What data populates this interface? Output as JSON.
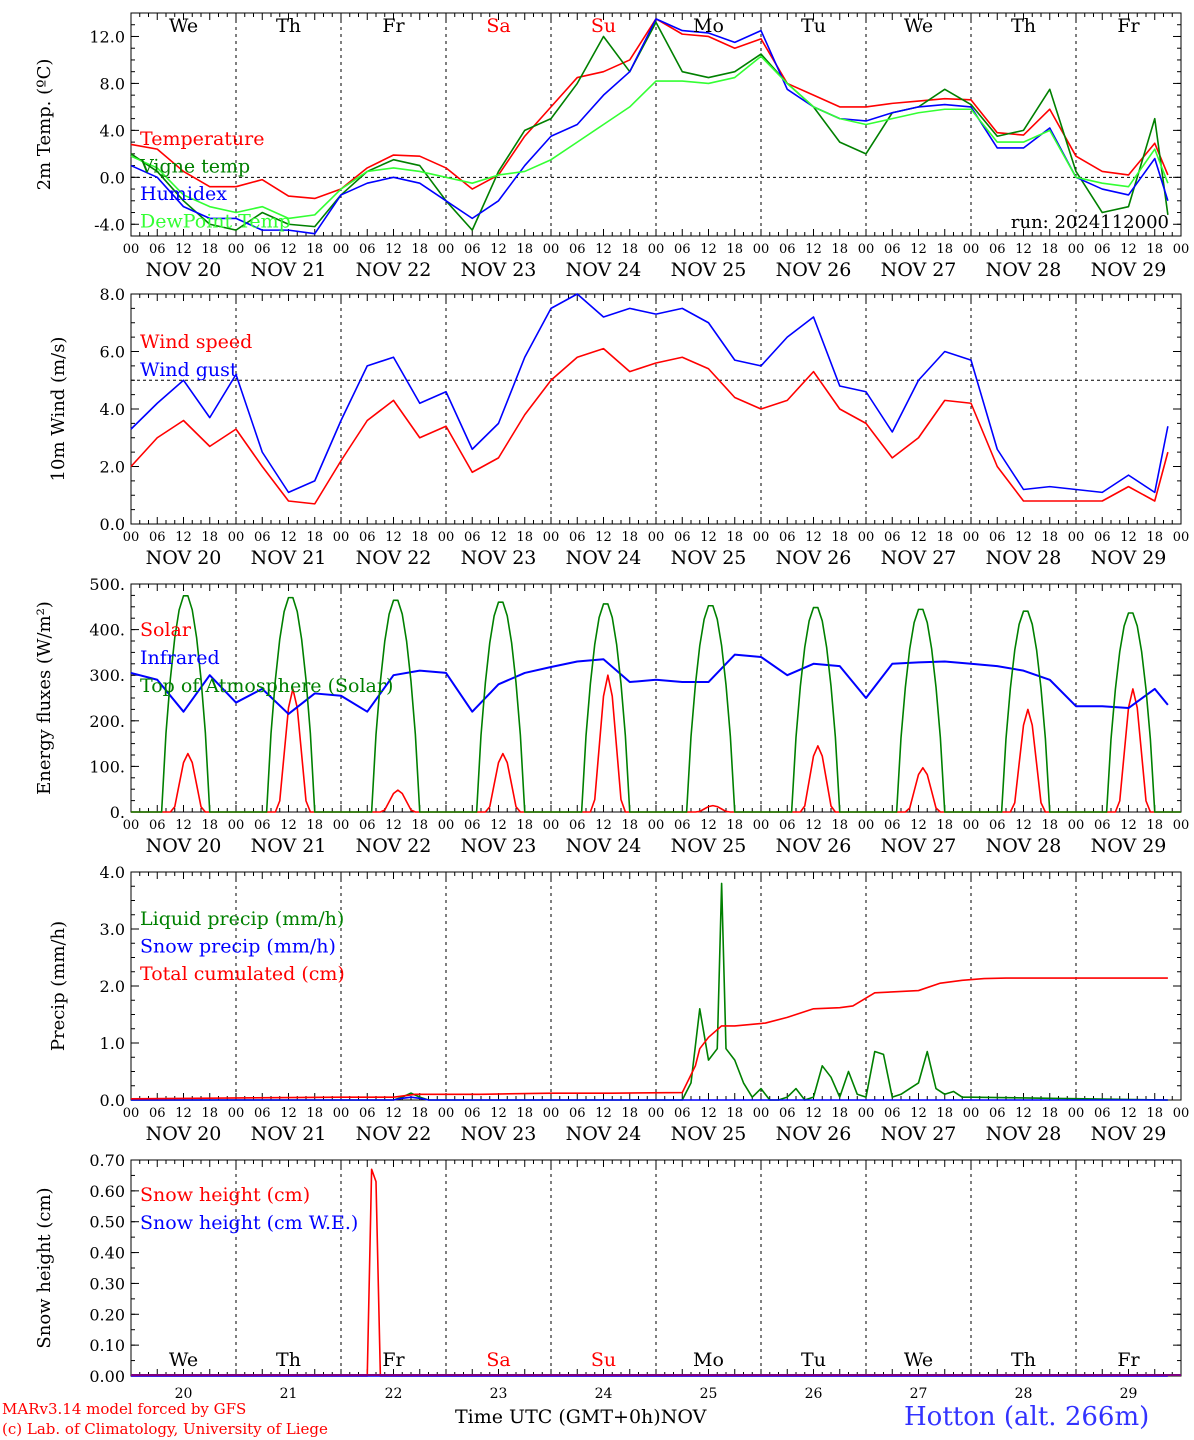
{
  "footer": {
    "credit_line1": "MARv3.14 model forced by GFS",
    "credit_line2": "(c) Lab. of Climatology, University of Liege",
    "xlabel": "Time UTC (GMT+0h)",
    "xunit": "NOV",
    "station": "Hotton (alt. 266m)"
  },
  "days": {
    "weekday_names": [
      "We",
      "Th",
      "Fr",
      "Sa",
      "Su",
      "Mo",
      "Tu",
      "We",
      "Th",
      "Fr"
    ],
    "weekend_flags": [
      false,
      false,
      false,
      true,
      true,
      false,
      false,
      false,
      false,
      false
    ],
    "date_labels": [
      "NOV 20",
      "NOV 21",
      "NOV 22",
      "NOV 23",
      "NOV 24",
      "NOV 25",
      "NOV 26",
      "NOV 27",
      "NOV 28",
      "NOV 29"
    ],
    "day_numbers": [
      "20",
      "21",
      "22",
      "23",
      "24",
      "25",
      "26",
      "27",
      "28",
      "29"
    ],
    "hour_ticks": [
      "00",
      "06",
      "12",
      "18"
    ],
    "final_tick": "00"
  },
  "colors": {
    "red": "#ff0000",
    "darkgreen": "#008000",
    "blue": "#0000ff",
    "lightgreen": "#33ff33",
    "weekend": "#ff0000",
    "purple": "#800080"
  },
  "chart_data": [
    {
      "id": "temp",
      "type": "line",
      "ylabel": "2m Temp. (ºC)",
      "ylim": [
        -5.0,
        14.0
      ],
      "yticks": [
        -4.0,
        0.0,
        4.0,
        8.0,
        12.0
      ],
      "ytick_labels": [
        "-4.0",
        "0.0",
        "4.0",
        "8.0",
        "12.0"
      ],
      "dashed_ref": 0.0,
      "annotation": "run: 2024112000",
      "x_unit": "hours since NOV 20 00 UTC",
      "series": [
        {
          "name": "Temperature",
          "color": "red",
          "x": [
            0,
            6,
            12,
            18,
            24,
            30,
            36,
            42,
            48,
            54,
            60,
            66,
            72,
            78,
            84,
            90,
            96,
            102,
            108,
            114,
            120,
            126,
            132,
            138,
            144,
            150,
            156,
            162,
            168,
            174,
            180,
            186,
            192,
            198,
            204,
            210,
            216,
            222,
            228,
            234,
            237
          ],
          "y": [
            2.8,
            2.4,
            0.5,
            -0.8,
            -0.8,
            -0.2,
            -1.6,
            -1.8,
            -1.0,
            0.8,
            1.9,
            1.8,
            0.8,
            -1.0,
            0.2,
            3.5,
            6.0,
            8.5,
            9.0,
            10.0,
            13.5,
            12.2,
            12.0,
            11.0,
            11.8,
            8.0,
            7.0,
            6.0,
            6.0,
            6.3,
            6.5,
            6.7,
            6.6,
            3.8,
            3.6,
            5.8,
            1.8,
            0.5,
            0.2,
            2.9,
            0.2
          ]
        },
        {
          "name": "Vigne temp",
          "color": "darkgreen",
          "x": [
            0,
            6,
            12,
            18,
            24,
            30,
            36,
            42,
            48,
            54,
            60,
            66,
            72,
            78,
            84,
            90,
            96,
            102,
            108,
            114,
            120,
            126,
            132,
            138,
            144,
            150,
            156,
            162,
            168,
            174,
            180,
            186,
            192,
            198,
            204,
            210,
            216,
            222,
            228,
            234,
            237
          ],
          "y": [
            2.0,
            0.5,
            -2.0,
            -4.0,
            -4.5,
            -3.0,
            -4.0,
            -4.2,
            -1.5,
            0.5,
            1.5,
            1.0,
            -2.0,
            -4.5,
            0.5,
            4.0,
            5.0,
            8.0,
            12.0,
            9.0,
            13.2,
            9.0,
            8.5,
            9.0,
            10.5,
            8.0,
            6.0,
            3.0,
            2.0,
            5.5,
            6.0,
            7.5,
            6.2,
            3.5,
            4.0,
            7.5,
            0.5,
            -3.0,
            -2.5,
            5.0,
            -3.2
          ]
        },
        {
          "name": "Humidex",
          "color": "blue",
          "x": [
            0,
            6,
            12,
            18,
            24,
            30,
            36,
            42,
            48,
            54,
            60,
            66,
            72,
            78,
            84,
            90,
            96,
            102,
            108,
            114,
            120,
            126,
            132,
            138,
            144,
            150,
            156,
            162,
            168,
            174,
            180,
            186,
            192,
            198,
            204,
            210,
            216,
            222,
            228,
            234,
            237
          ],
          "y": [
            1.0,
            0.0,
            -2.5,
            -3.5,
            -3.5,
            -4.5,
            -4.5,
            -4.8,
            -1.5,
            -0.5,
            0.0,
            -0.5,
            -2.0,
            -3.5,
            -2.0,
            1.0,
            3.5,
            4.5,
            7.0,
            9.0,
            13.5,
            12.5,
            12.3,
            11.5,
            12.5,
            7.5,
            6.0,
            5.0,
            4.8,
            5.5,
            6.0,
            6.2,
            6.0,
            2.5,
            2.5,
            4.2,
            0.0,
            -1.0,
            -1.5,
            1.6,
            -2.0
          ]
        },
        {
          "name": "DewPoint Temp",
          "color": "lightgreen",
          "x": [
            0,
            6,
            12,
            18,
            24,
            30,
            36,
            42,
            48,
            54,
            60,
            66,
            72,
            78,
            84,
            90,
            96,
            102,
            108,
            114,
            120,
            126,
            132,
            138,
            144,
            150,
            156,
            162,
            168,
            174,
            180,
            186,
            192,
            198,
            204,
            210,
            216,
            222,
            228,
            234,
            237
          ],
          "y": [
            1.8,
            0.8,
            -1.5,
            -2.5,
            -3.0,
            -2.5,
            -3.5,
            -3.2,
            -1.0,
            0.5,
            0.8,
            0.5,
            0.0,
            -0.5,
            0.2,
            0.5,
            1.5,
            3.0,
            4.5,
            6.0,
            8.2,
            8.2,
            8.0,
            8.5,
            10.3,
            8.0,
            6.0,
            5.0,
            4.5,
            5.0,
            5.5,
            5.8,
            5.8,
            3.0,
            3.0,
            4.0,
            0.0,
            -0.5,
            -0.8,
            2.4,
            -0.5
          ]
        }
      ]
    },
    {
      "id": "wind",
      "type": "line",
      "ylabel": "10m Wind (m/s)",
      "ylim": [
        0.0,
        8.0
      ],
      "yticks": [
        0.0,
        2.0,
        4.0,
        6.0,
        8.0
      ],
      "ytick_labels": [
        "0.0",
        "2.0",
        "4.0",
        "6.0",
        "8.0"
      ],
      "dashed_ref": 5.0,
      "x_unit": "hours since NOV 20 00 UTC",
      "series": [
        {
          "name": "Wind speed",
          "color": "red",
          "x": [
            0,
            6,
            12,
            18,
            24,
            30,
            36,
            42,
            48,
            54,
            60,
            66,
            72,
            78,
            84,
            90,
            96,
            102,
            108,
            114,
            120,
            126,
            132,
            138,
            144,
            150,
            156,
            162,
            168,
            174,
            180,
            186,
            192,
            198,
            204,
            210,
            216,
            222,
            228,
            234,
            237
          ],
          "y": [
            2.0,
            3.0,
            3.6,
            2.7,
            3.3,
            2.0,
            0.8,
            0.7,
            2.2,
            3.6,
            4.3,
            3.0,
            3.4,
            1.8,
            2.3,
            3.8,
            5.0,
            5.8,
            6.1,
            5.3,
            5.6,
            5.8,
            5.4,
            4.4,
            4.0,
            4.3,
            5.3,
            4.0,
            3.5,
            2.3,
            3.0,
            4.3,
            4.2,
            2.0,
            0.8,
            0.8,
            0.8,
            0.8,
            1.3,
            0.8,
            2.5
          ]
        },
        {
          "name": "Wind gust",
          "color": "blue",
          "x": [
            0,
            6,
            12,
            18,
            24,
            30,
            36,
            42,
            48,
            54,
            60,
            66,
            72,
            78,
            84,
            90,
            96,
            102,
            108,
            114,
            120,
            126,
            132,
            138,
            144,
            150,
            156,
            162,
            168,
            174,
            180,
            186,
            192,
            198,
            204,
            210,
            216,
            222,
            228,
            234,
            237
          ],
          "y": [
            3.3,
            4.2,
            5.0,
            3.7,
            5.2,
            2.5,
            1.1,
            1.5,
            3.6,
            5.5,
            5.8,
            4.2,
            4.6,
            2.6,
            3.5,
            5.8,
            7.5,
            8.0,
            7.2,
            7.5,
            7.3,
            7.5,
            7.0,
            5.7,
            5.5,
            6.5,
            7.2,
            4.8,
            4.6,
            3.2,
            5.0,
            6.0,
            5.7,
            2.6,
            1.2,
            1.3,
            1.2,
            1.1,
            1.7,
            1.1,
            3.4
          ]
        }
      ]
    },
    {
      "id": "flux",
      "type": "line",
      "ylabel": "Energy fluxes (W/m²)",
      "ylim": [
        0,
        500
      ],
      "yticks": [
        0,
        100,
        200,
        300,
        400,
        500
      ],
      "ytick_labels": [
        "0.",
        "100.",
        "200.",
        "300.",
        "400.",
        "500."
      ],
      "x_unit": "hours since NOV 20 00 UTC",
      "series": [
        {
          "name": "Solar",
          "color": "red",
          "peaks": [
            [
              13,
              128
            ],
            [
              37,
              270
            ],
            [
              61,
              48
            ],
            [
              85,
              128
            ],
            [
              109,
              300
            ],
            [
              133,
              14
            ],
            [
              157,
              145
            ],
            [
              181,
              97
            ],
            [
              205,
              225
            ],
            [
              229,
              270
            ]
          ]
        },
        {
          "name": "Infrared",
          "color": "blue",
          "x": [
            0,
            6,
            12,
            18,
            24,
            30,
            36,
            42,
            48,
            54,
            60,
            66,
            72,
            78,
            84,
            90,
            96,
            102,
            108,
            114,
            120,
            126,
            132,
            138,
            144,
            150,
            156,
            162,
            168,
            174,
            180,
            186,
            192,
            198,
            204,
            210,
            216,
            222,
            228,
            234,
            237
          ],
          "y": [
            305,
            290,
            220,
            300,
            240,
            270,
            215,
            260,
            255,
            220,
            300,
            310,
            305,
            220,
            280,
            305,
            318,
            330,
            335,
            285,
            290,
            285,
            285,
            345,
            340,
            300,
            325,
            320,
            250,
            325,
            328,
            330,
            325,
            320,
            310,
            290,
            232,
            232,
            228,
            270,
            235
          ]
        },
        {
          "name": "Top of Atmosphere (Solar)",
          "color": "darkgreen",
          "peaks": [
            [
              12.5,
              478
            ],
            [
              36.5,
              474
            ],
            [
              60.5,
              468
            ],
            [
              84.5,
              464
            ],
            [
              108.5,
              460
            ],
            [
              132.5,
              456
            ],
            [
              156.5,
              452
            ],
            [
              180.5,
              448
            ],
            [
              204.5,
              444
            ],
            [
              228.5,
              440
            ]
          ]
        }
      ]
    },
    {
      "id": "precip",
      "type": "line",
      "ylabel": "Precip (mm/h)",
      "ylim": [
        0.0,
        4.0
      ],
      "yticks": [
        0.0,
        1.0,
        2.0,
        3.0,
        4.0
      ],
      "ytick_labels": [
        "0.0",
        "1.0",
        "2.0",
        "3.0",
        "4.0"
      ],
      "x_unit": "hours since NOV 20 00 UTC",
      "series": [
        {
          "name": "Liquid precip (mm/h)",
          "color": "darkgreen",
          "x": [
            0,
            60,
            62,
            64,
            66,
            68,
            110,
            126,
            128,
            130,
            132,
            134,
            135,
            136,
            138,
            140,
            142,
            144,
            146,
            148,
            150,
            152,
            154,
            156,
            158,
            160,
            162,
            164,
            166,
            168,
            170,
            172,
            174,
            176,
            178,
            180,
            182,
            184,
            186,
            188,
            190,
            192,
            237
          ],
          "y": [
            0,
            0,
            0.05,
            0.12,
            0.05,
            0,
            0,
            0,
            0.3,
            1.6,
            0.7,
            0.9,
            3.8,
            0.9,
            0.7,
            0.3,
            0.05,
            0.2,
            0,
            0,
            0.05,
            0.2,
            0,
            0.05,
            0.6,
            0.4,
            0.05,
            0.5,
            0.1,
            0.05,
            0.85,
            0.8,
            0.05,
            0.1,
            0.2,
            0.3,
            0.85,
            0.2,
            0.1,
            0.15,
            0.05,
            0.05,
            0
          ]
        },
        {
          "name": "Snow precip (mm/h)",
          "color": "blue",
          "x": [
            0,
            60,
            62,
            64,
            66,
            68,
            237
          ],
          "y": [
            0,
            0,
            0.03,
            0.05,
            0.03,
            0,
            0
          ]
        },
        {
          "name": "Total cumulated (cm)",
          "color": "red",
          "x": [
            0,
            48,
            60,
            65,
            66,
            80,
            96,
            110,
            126,
            129,
            130,
            132,
            135,
            138,
            145,
            150,
            156,
            162,
            165,
            170,
            175,
            180,
            185,
            190,
            195,
            200,
            210,
            237
          ],
          "y": [
            0.02,
            0.05,
            0.05,
            0.1,
            0.1,
            0.1,
            0.12,
            0.12,
            0.13,
            0.6,
            0.9,
            1.1,
            1.3,
            1.3,
            1.35,
            1.45,
            1.6,
            1.62,
            1.65,
            1.88,
            1.9,
            1.92,
            2.05,
            2.1,
            2.13,
            2.14,
            2.14,
            2.14
          ]
        }
      ]
    },
    {
      "id": "snow",
      "type": "line",
      "ylabel": "Snow height (cm)",
      "ylim": [
        0.0,
        0.7
      ],
      "yticks": [
        0.0,
        0.1,
        0.2,
        0.3,
        0.4,
        0.5,
        0.6,
        0.7
      ],
      "ytick_labels": [
        "0.00",
        "0.10",
        "0.20",
        "0.30",
        "0.40",
        "0.50",
        "0.60",
        "0.70"
      ],
      "x_unit": "hours since NOV 20 00 UTC",
      "series": [
        {
          "name": "Snow height (cm)",
          "color": "red",
          "x": [
            0,
            54,
            55,
            56,
            57,
            237
          ],
          "y": [
            0,
            0,
            0.67,
            0.63,
            0,
            0
          ]
        },
        {
          "name": "Snow height (cm W.E.)",
          "color": "blue",
          "x": [
            0,
            237
          ],
          "y": [
            0,
            0
          ]
        }
      ]
    }
  ]
}
